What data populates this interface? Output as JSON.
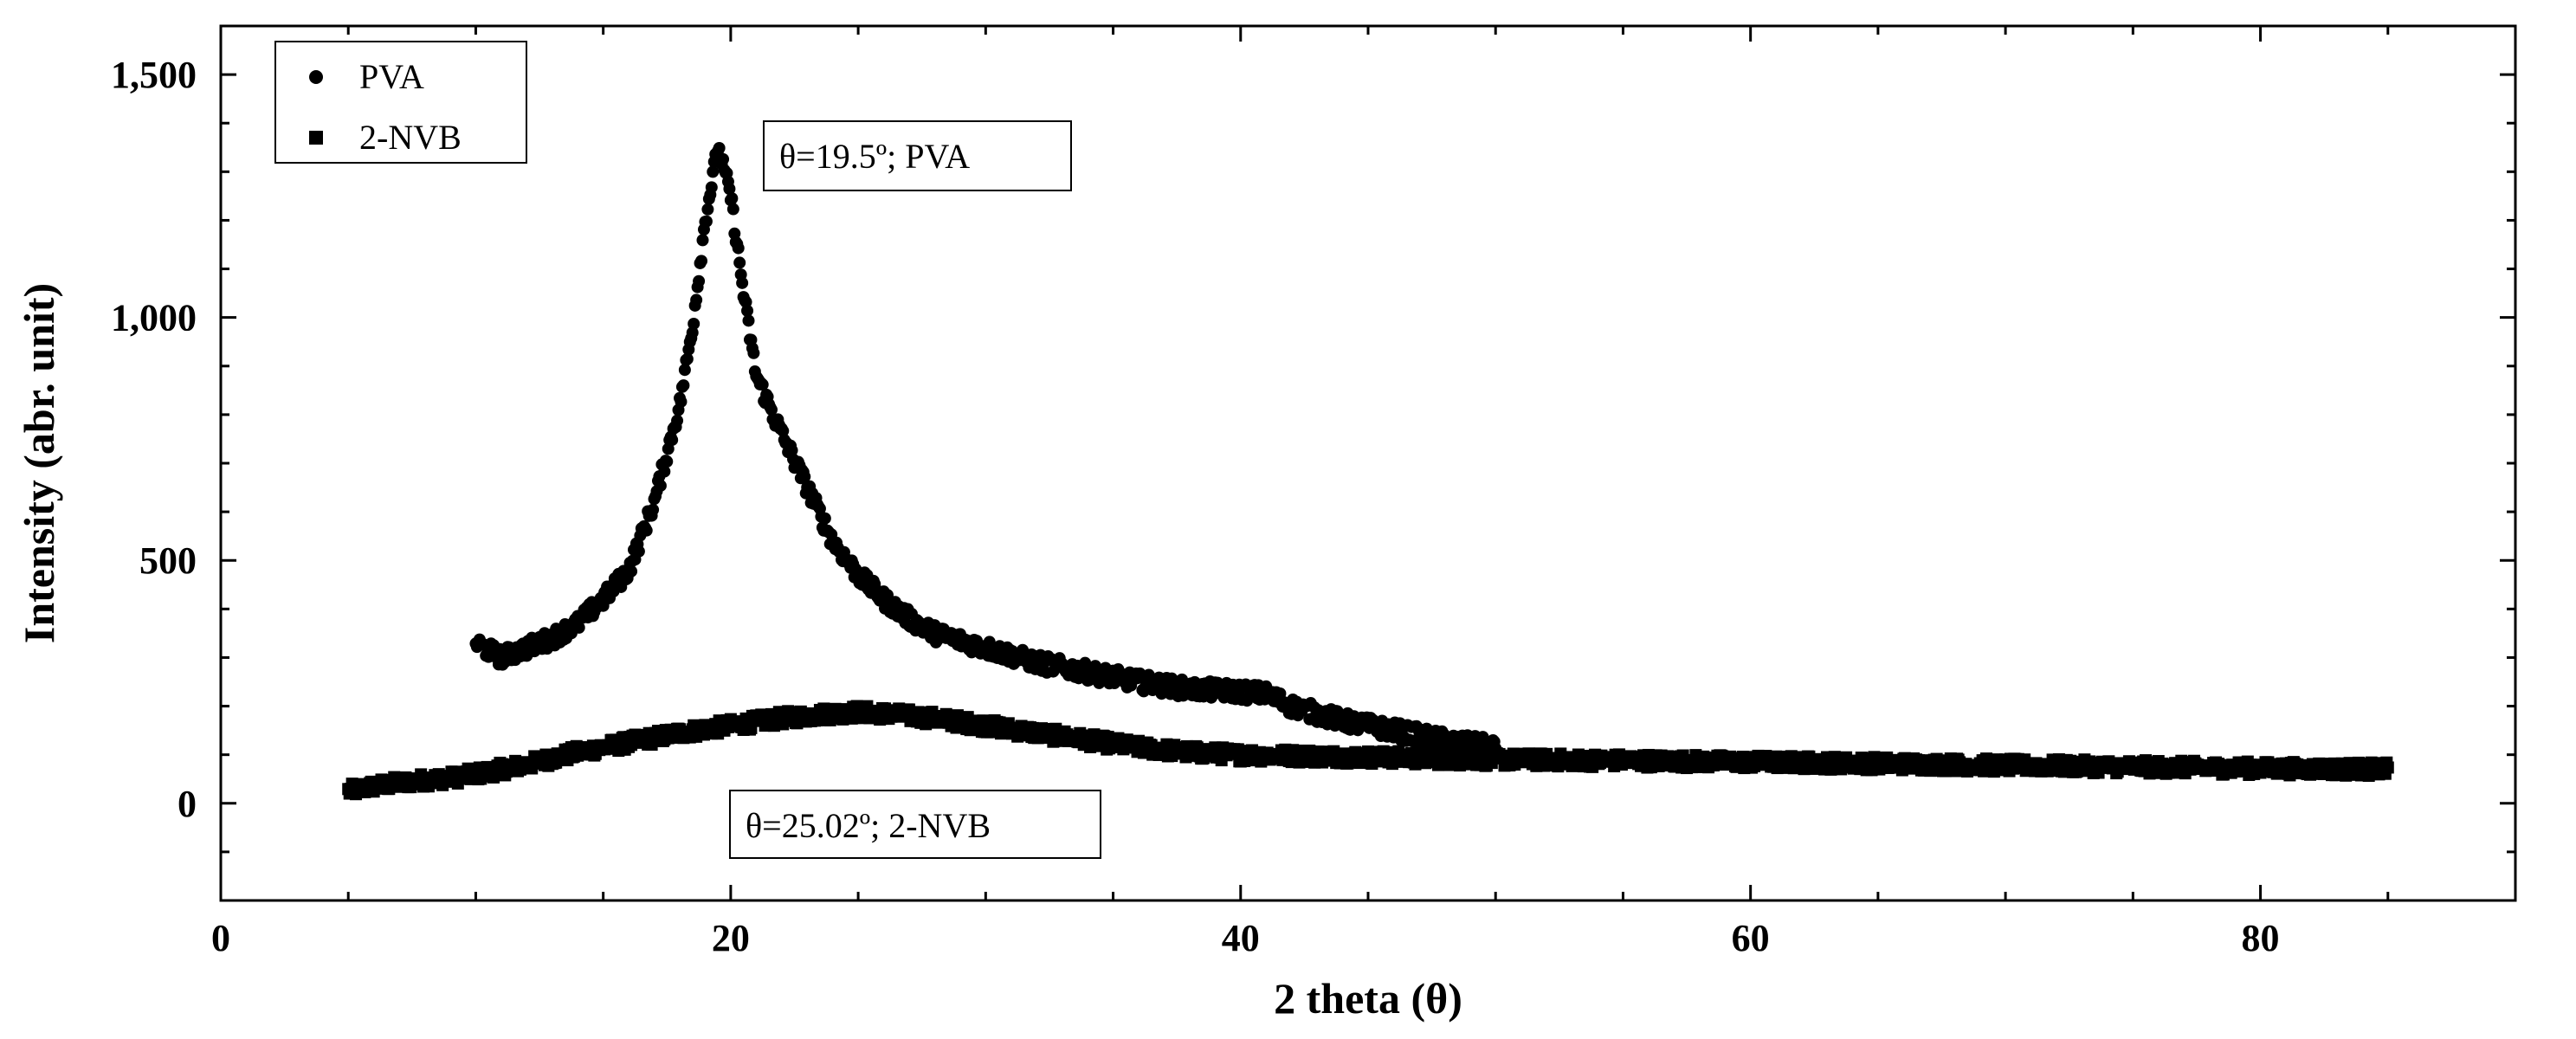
{
  "chart_data": {
    "type": "scatter",
    "xlabel": "2 theta (θ)",
    "ylabel": "Intensity (abr. unit)",
    "xlim": [
      0,
      90
    ],
    "ylim": [
      -200,
      1600
    ],
    "x_ticks": [
      0,
      20,
      40,
      60,
      80
    ],
    "y_ticks": [
      0,
      500,
      1000,
      1500
    ],
    "y_tick_labels": [
      "0",
      "500",
      "1,000",
      "1,500"
    ],
    "grid": false,
    "legend_position": "top-left",
    "series": [
      {
        "name": "PVA",
        "marker": "circle",
        "color": "#000000",
        "x_range": [
          10,
          50
        ],
        "peak_x": 19.5,
        "points": [
          [
            10,
            330
          ],
          [
            11,
            300
          ],
          [
            12,
            320
          ],
          [
            13,
            340
          ],
          [
            14,
            370
          ],
          [
            15,
            420
          ],
          [
            16,
            480
          ],
          [
            17,
            620
          ],
          [
            18,
            820
          ],
          [
            18.5,
            980
          ],
          [
            19,
            1200
          ],
          [
            19.5,
            1350
          ],
          [
            20,
            1250
          ],
          [
            20.5,
            1050
          ],
          [
            21,
            880
          ],
          [
            22,
            760
          ],
          [
            23,
            650
          ],
          [
            24,
            540
          ],
          [
            25,
            470
          ],
          [
            26,
            420
          ],
          [
            27,
            380
          ],
          [
            28,
            350
          ],
          [
            30,
            320
          ],
          [
            32,
            290
          ],
          [
            34,
            270
          ],
          [
            36,
            250
          ],
          [
            38,
            235
          ],
          [
            40,
            230
          ],
          [
            41,
            225
          ],
          [
            42,
            200
          ],
          [
            44,
            170
          ],
          [
            46,
            150
          ],
          [
            48,
            130
          ],
          [
            50,
            115
          ]
        ]
      },
      {
        "name": "2-NVB",
        "marker": "square",
        "color": "#000000",
        "x_range": [
          5,
          85
        ],
        "peak_x": 25.02,
        "points": [
          [
            5,
            25
          ],
          [
            6,
            35
          ],
          [
            7,
            42
          ],
          [
            8,
            48
          ],
          [
            9,
            52
          ],
          [
            10,
            60
          ],
          [
            12,
            80
          ],
          [
            14,
            105
          ],
          [
            16,
            125
          ],
          [
            18,
            145
          ],
          [
            20,
            160
          ],
          [
            22,
            175
          ],
          [
            24,
            185
          ],
          [
            25,
            188
          ],
          [
            26,
            185
          ],
          [
            28,
            175
          ],
          [
            30,
            160
          ],
          [
            32,
            145
          ],
          [
            34,
            130
          ],
          [
            36,
            115
          ],
          [
            38,
            105
          ],
          [
            40,
            100
          ],
          [
            45,
            95
          ],
          [
            50,
            90
          ],
          [
            55,
            88
          ],
          [
            60,
            85
          ],
          [
            65,
            82
          ],
          [
            70,
            78
          ],
          [
            75,
            75
          ],
          [
            80,
            72
          ],
          [
            85,
            70
          ]
        ]
      }
    ],
    "annotations": [
      {
        "text": "θ=19.5º; PVA",
        "x": 19.5,
        "y": 1350
      },
      {
        "text": "θ=25.02º; 2-NVB",
        "x": 25.02,
        "y": 188
      }
    ]
  }
}
